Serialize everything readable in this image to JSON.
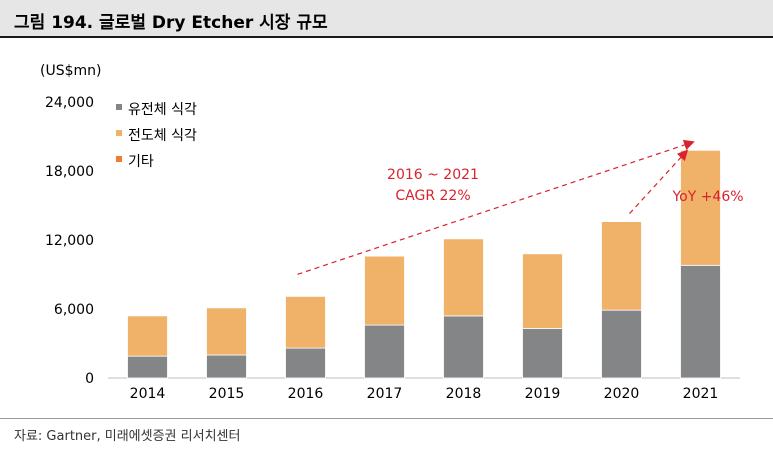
{
  "header": {
    "title": "그림 194. 글로벌 Dry Etcher 시장 규모"
  },
  "unit_label": "(US$mn)",
  "source": "자료: Gartner, 미래에셋증권 리서치센터",
  "colors": {
    "dielectric": "#838587",
    "conductor": "#f0b169",
    "other": "#ed7d31",
    "annotation": "#d9232e"
  },
  "chart_data": {
    "type": "bar",
    "stacked": true,
    "categories": [
      "2014",
      "2015",
      "2016",
      "2017",
      "2018",
      "2019",
      "2020",
      "2021"
    ],
    "series": [
      {
        "name": "유전체 식각",
        "values": [
          1900,
          2000,
          2600,
          4600,
          5400,
          4300,
          5900,
          9800
        ]
      },
      {
        "name": "전도체 식각",
        "values": [
          3500,
          4100,
          4500,
          6000,
          6700,
          6500,
          7700,
          10000
        ]
      },
      {
        "name": "기타",
        "values": [
          0,
          0,
          0,
          0,
          0,
          0,
          0,
          0
        ]
      }
    ],
    "yticks": [
      "24,000",
      "18,000",
      "12,000",
      "6,000",
      "0"
    ],
    "ylim": [
      0,
      24000
    ],
    "legend": "top-left",
    "annotations": [
      {
        "lines": [
          "2016 ~ 2021",
          "CAGR 22%"
        ],
        "from": "2016",
        "to": "2021"
      },
      {
        "lines": [
          "YoY +46%"
        ],
        "from": "2020",
        "to": "2021"
      }
    ]
  }
}
